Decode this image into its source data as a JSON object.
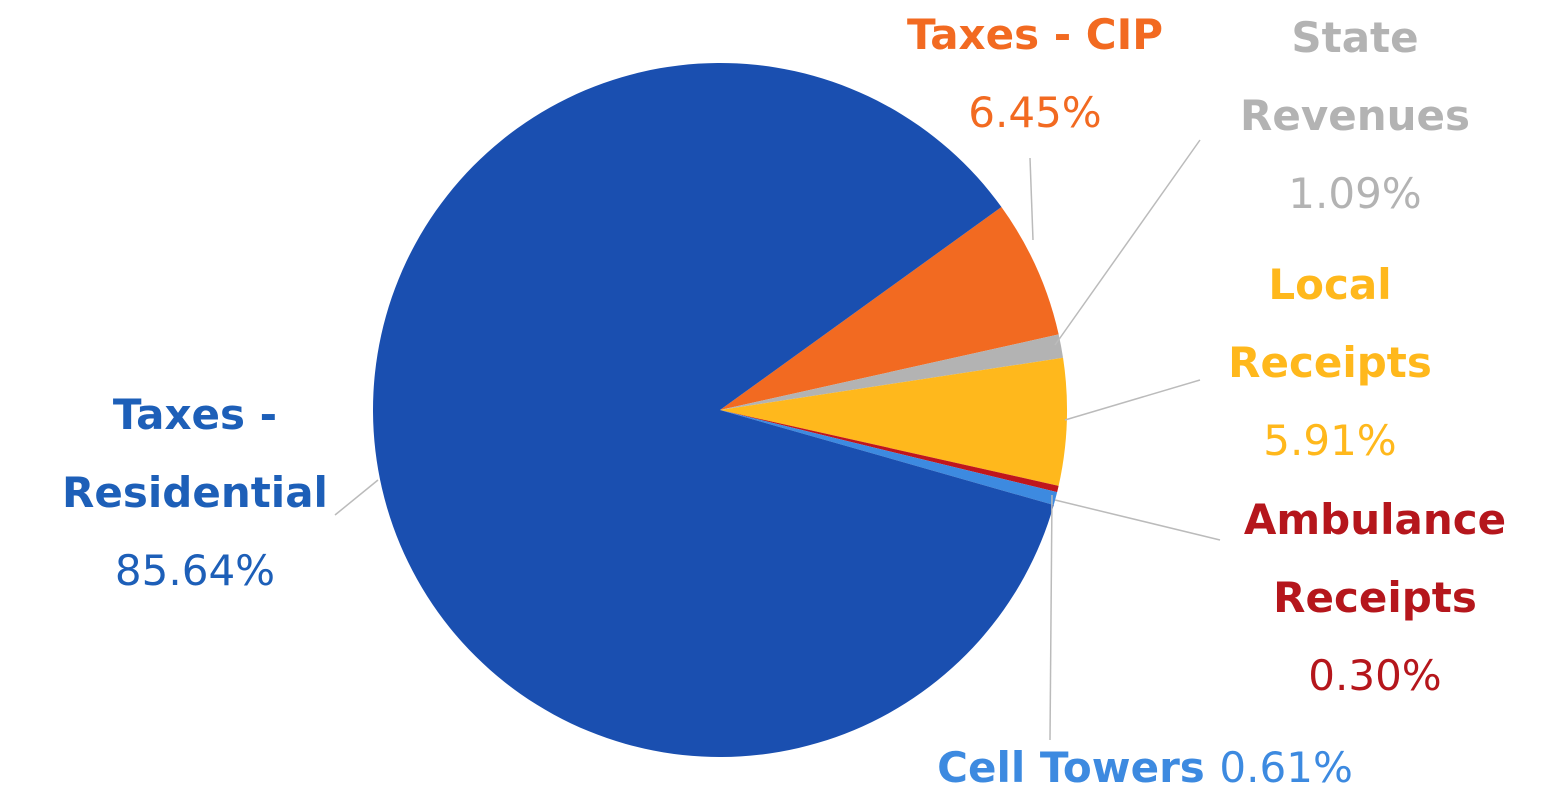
{
  "chart_data": {
    "type": "pie",
    "categories": [
      "Taxes - CIP",
      "State Revenues",
      "Local Receipts",
      "Ambulance Receipts",
      "Cell Towers",
      "Taxes - Residential"
    ],
    "values": [
      6.45,
      1.09,
      5.91,
      0.3,
      0.61,
      85.64
    ],
    "value_labels": [
      "6.45%",
      "1.09%",
      "5.91%",
      "0.30%",
      "0.61%",
      "85.64%"
    ],
    "colors": [
      "#f26a21",
      "#b3b3b3",
      "#ffb81c",
      "#c0161c",
      "#3d8ae0",
      "#1a4fb0"
    ],
    "label_colors": [
      "#f26a21",
      "#b3b3b3",
      "#ffb81c",
      "#b5161c",
      "#3d8ae0",
      "#1d5fb8"
    ]
  }
}
